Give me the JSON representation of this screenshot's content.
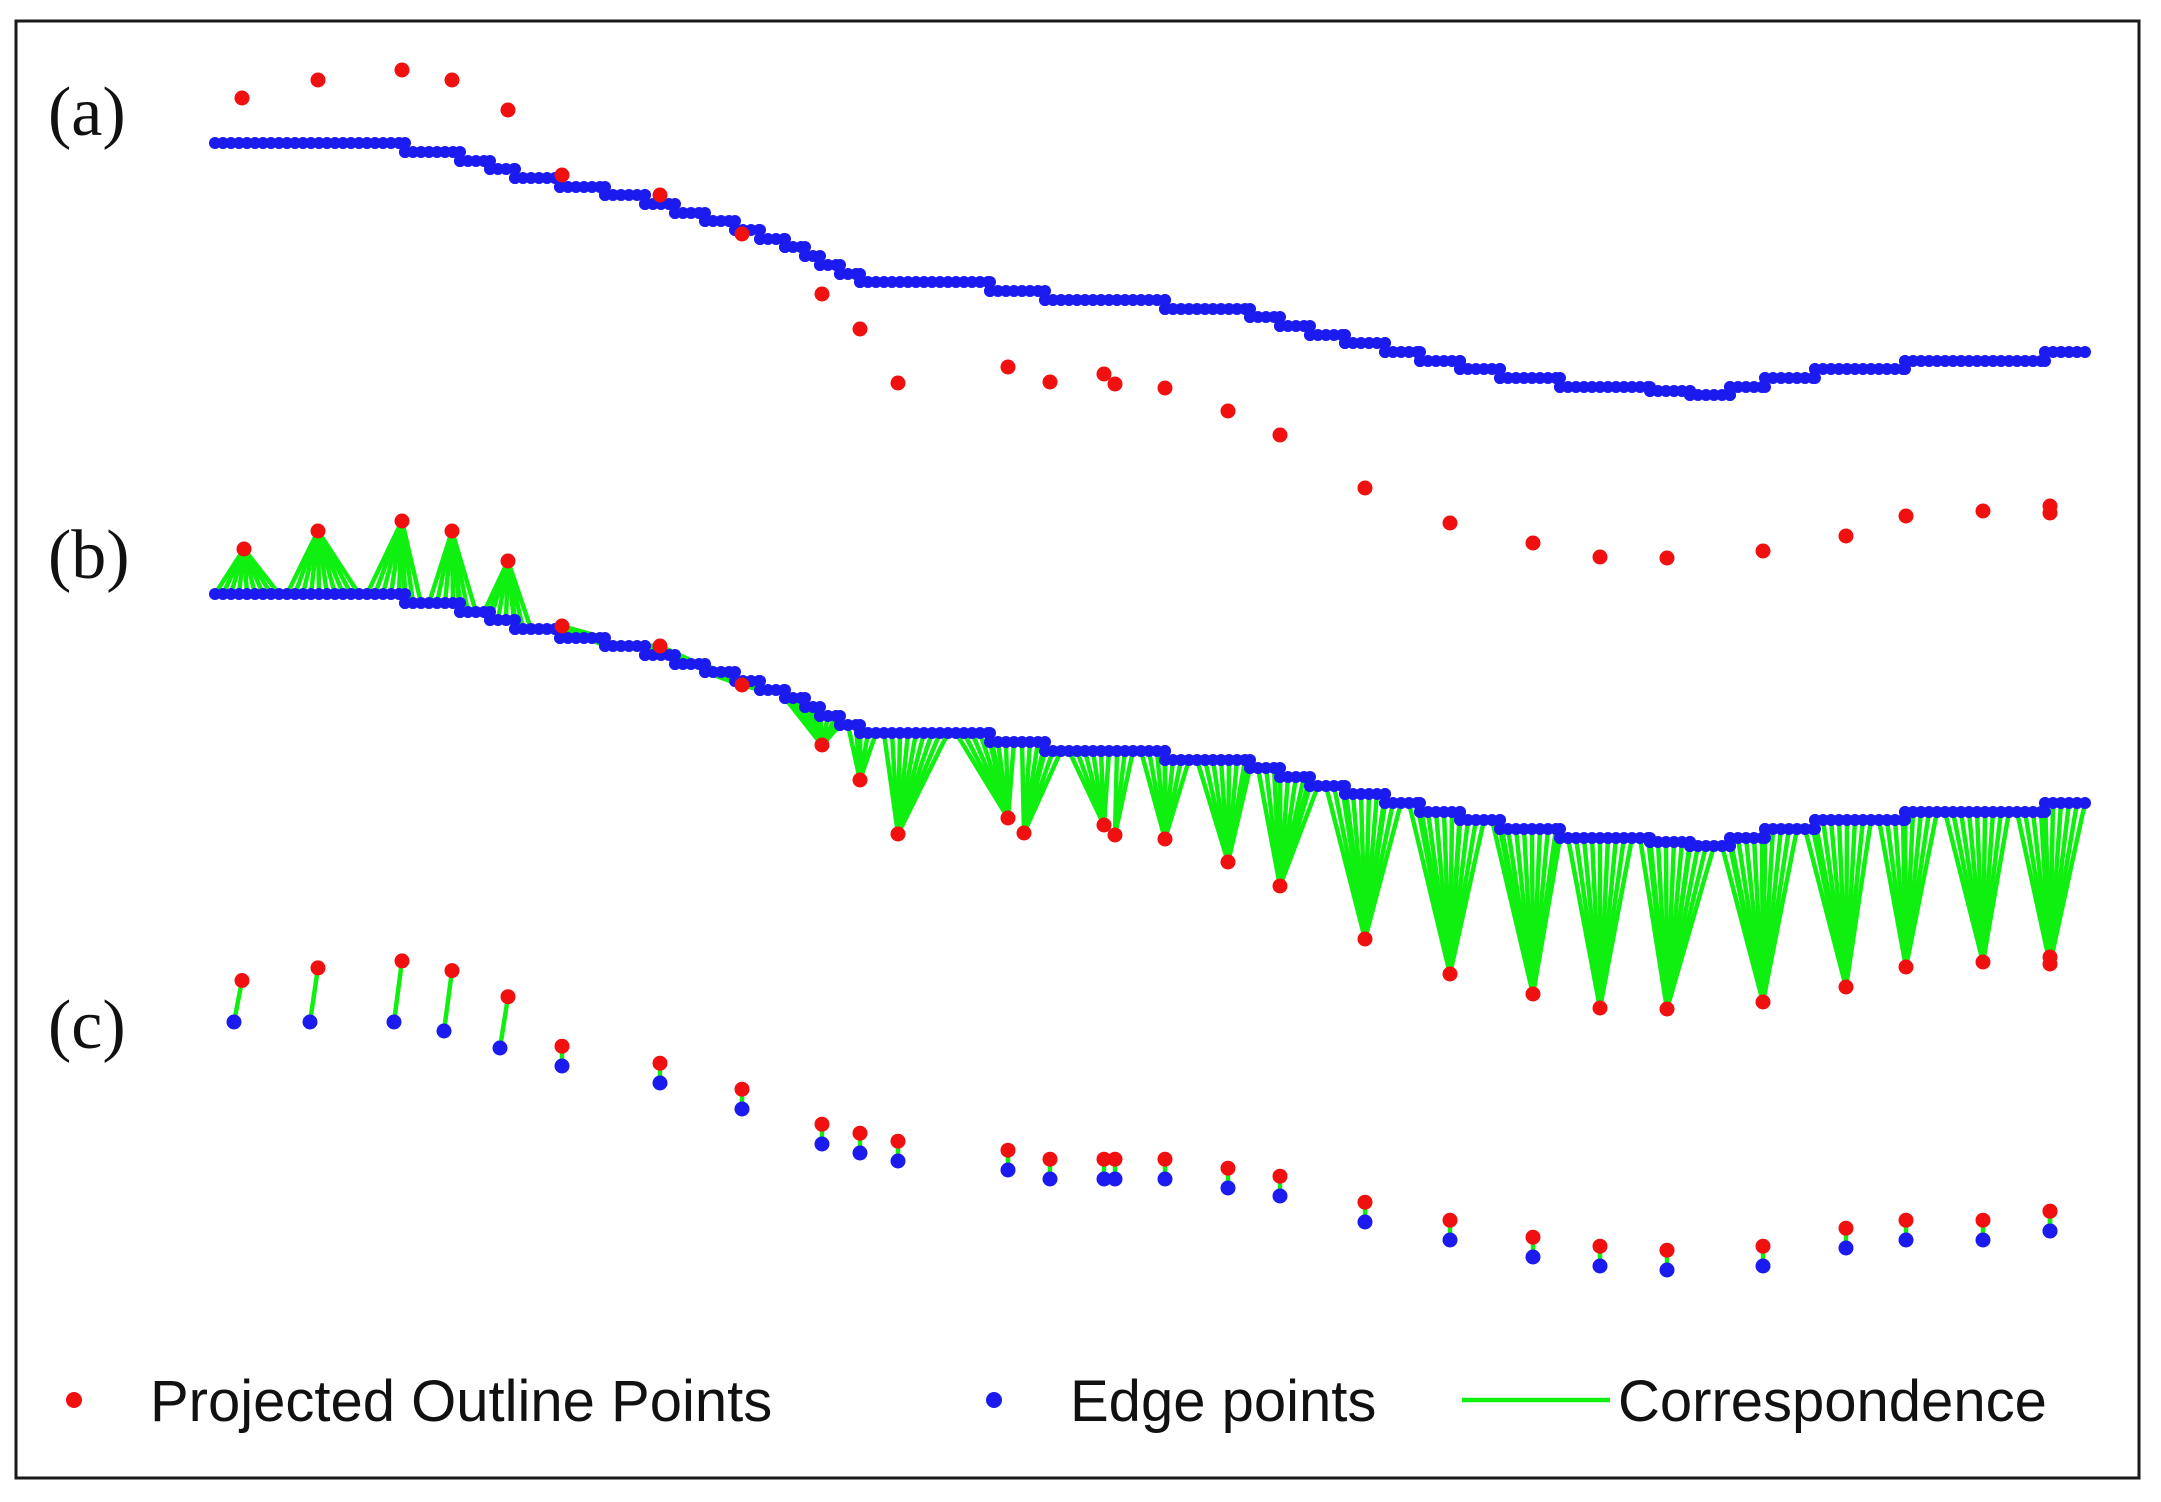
{
  "panels": [
    {
      "label": "(a)",
      "mode": "points"
    },
    {
      "label": "(b)",
      "mode": "many-to-one"
    },
    {
      "label": "(c)",
      "mode": "one-to-one"
    }
  ],
  "legend": {
    "projected_label": "Projected Outline Points",
    "edge_label": "Edge points",
    "correspondence_label": "Correspondence"
  },
  "colors": {
    "projected": "#f01010",
    "edge": "#1b1bf0",
    "correspondence": "#10f010",
    "frame": "#1a1a1a"
  },
  "projected_offsets": [
    -45,
    -63,
    -73,
    -72,
    -59,
    -12,
    -9,
    4,
    29,
    55,
    101,
    76,
    82,
    74,
    84,
    88,
    102,
    118,
    145,
    162,
    165,
    170,
    167,
    164,
    167,
    155,
    150,
    161,
    154
  ]
}
